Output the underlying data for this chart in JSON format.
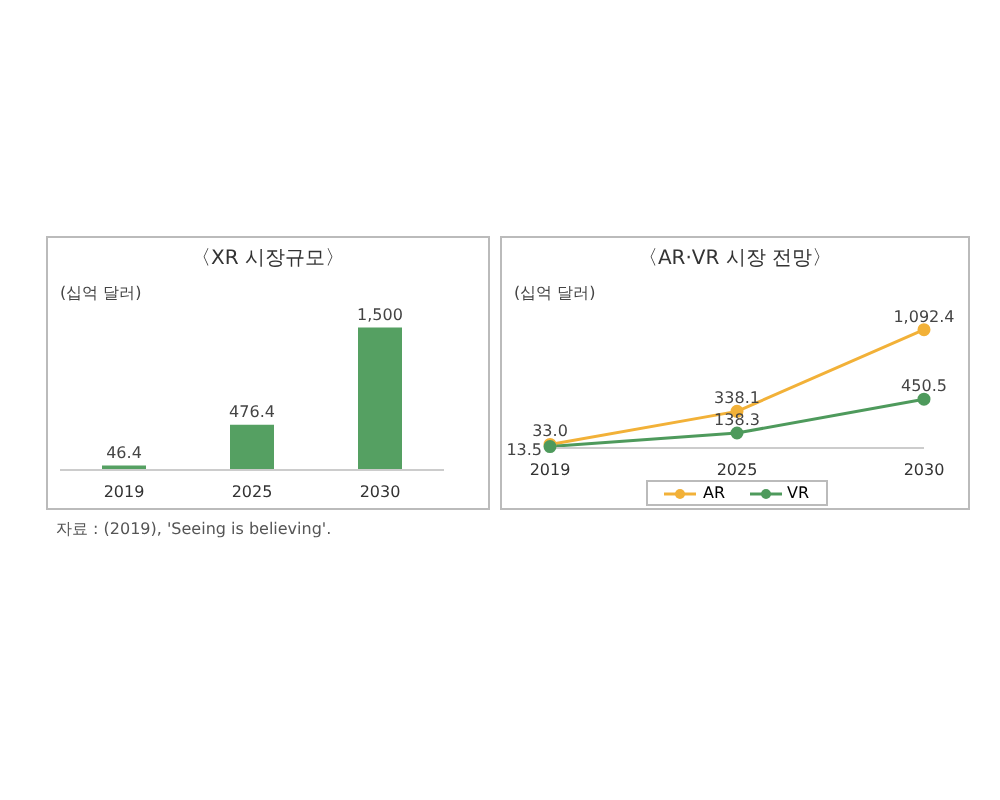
{
  "chart_data": [
    {
      "type": "bar",
      "title": "〈XR 시장규모〉",
      "ylabel": "(십억 달러)",
      "categories": [
        "2019",
        "2025",
        "2030"
      ],
      "series": [
        {
          "color": "#55a062",
          "values": [
            46.4,
            476.4,
            1500
          ],
          "value_labels": [
            "46.4",
            "476.4",
            "1,500"
          ]
        }
      ],
      "tick_labels": "x",
      "grid": false,
      "legend": false,
      "annotations": [
        "자료 : (2019), 'Seeing is believing'."
      ]
    },
    {
      "type": "line",
      "title": "〈AR·VR 시장 전망〉",
      "ylabel": "(십억 달러)",
      "categories": [
        "2019",
        "2025",
        "2030"
      ],
      "series": [
        {
          "name": "AR",
          "color": "#f2b138",
          "values": [
            33.0,
            338.1,
            1092.4
          ],
          "value_labels": [
            "33.0",
            "338.1",
            "1,092.4"
          ]
        },
        {
          "name": "VR",
          "color": "#4e9a5c",
          "values": [
            13.5,
            138.3,
            450.5
          ],
          "value_labels": [
            "13.5",
            "138.3",
            "450.5"
          ]
        }
      ],
      "tick_labels": "x",
      "grid": false,
      "legend": "bottom",
      "marker": "circle"
    }
  ]
}
